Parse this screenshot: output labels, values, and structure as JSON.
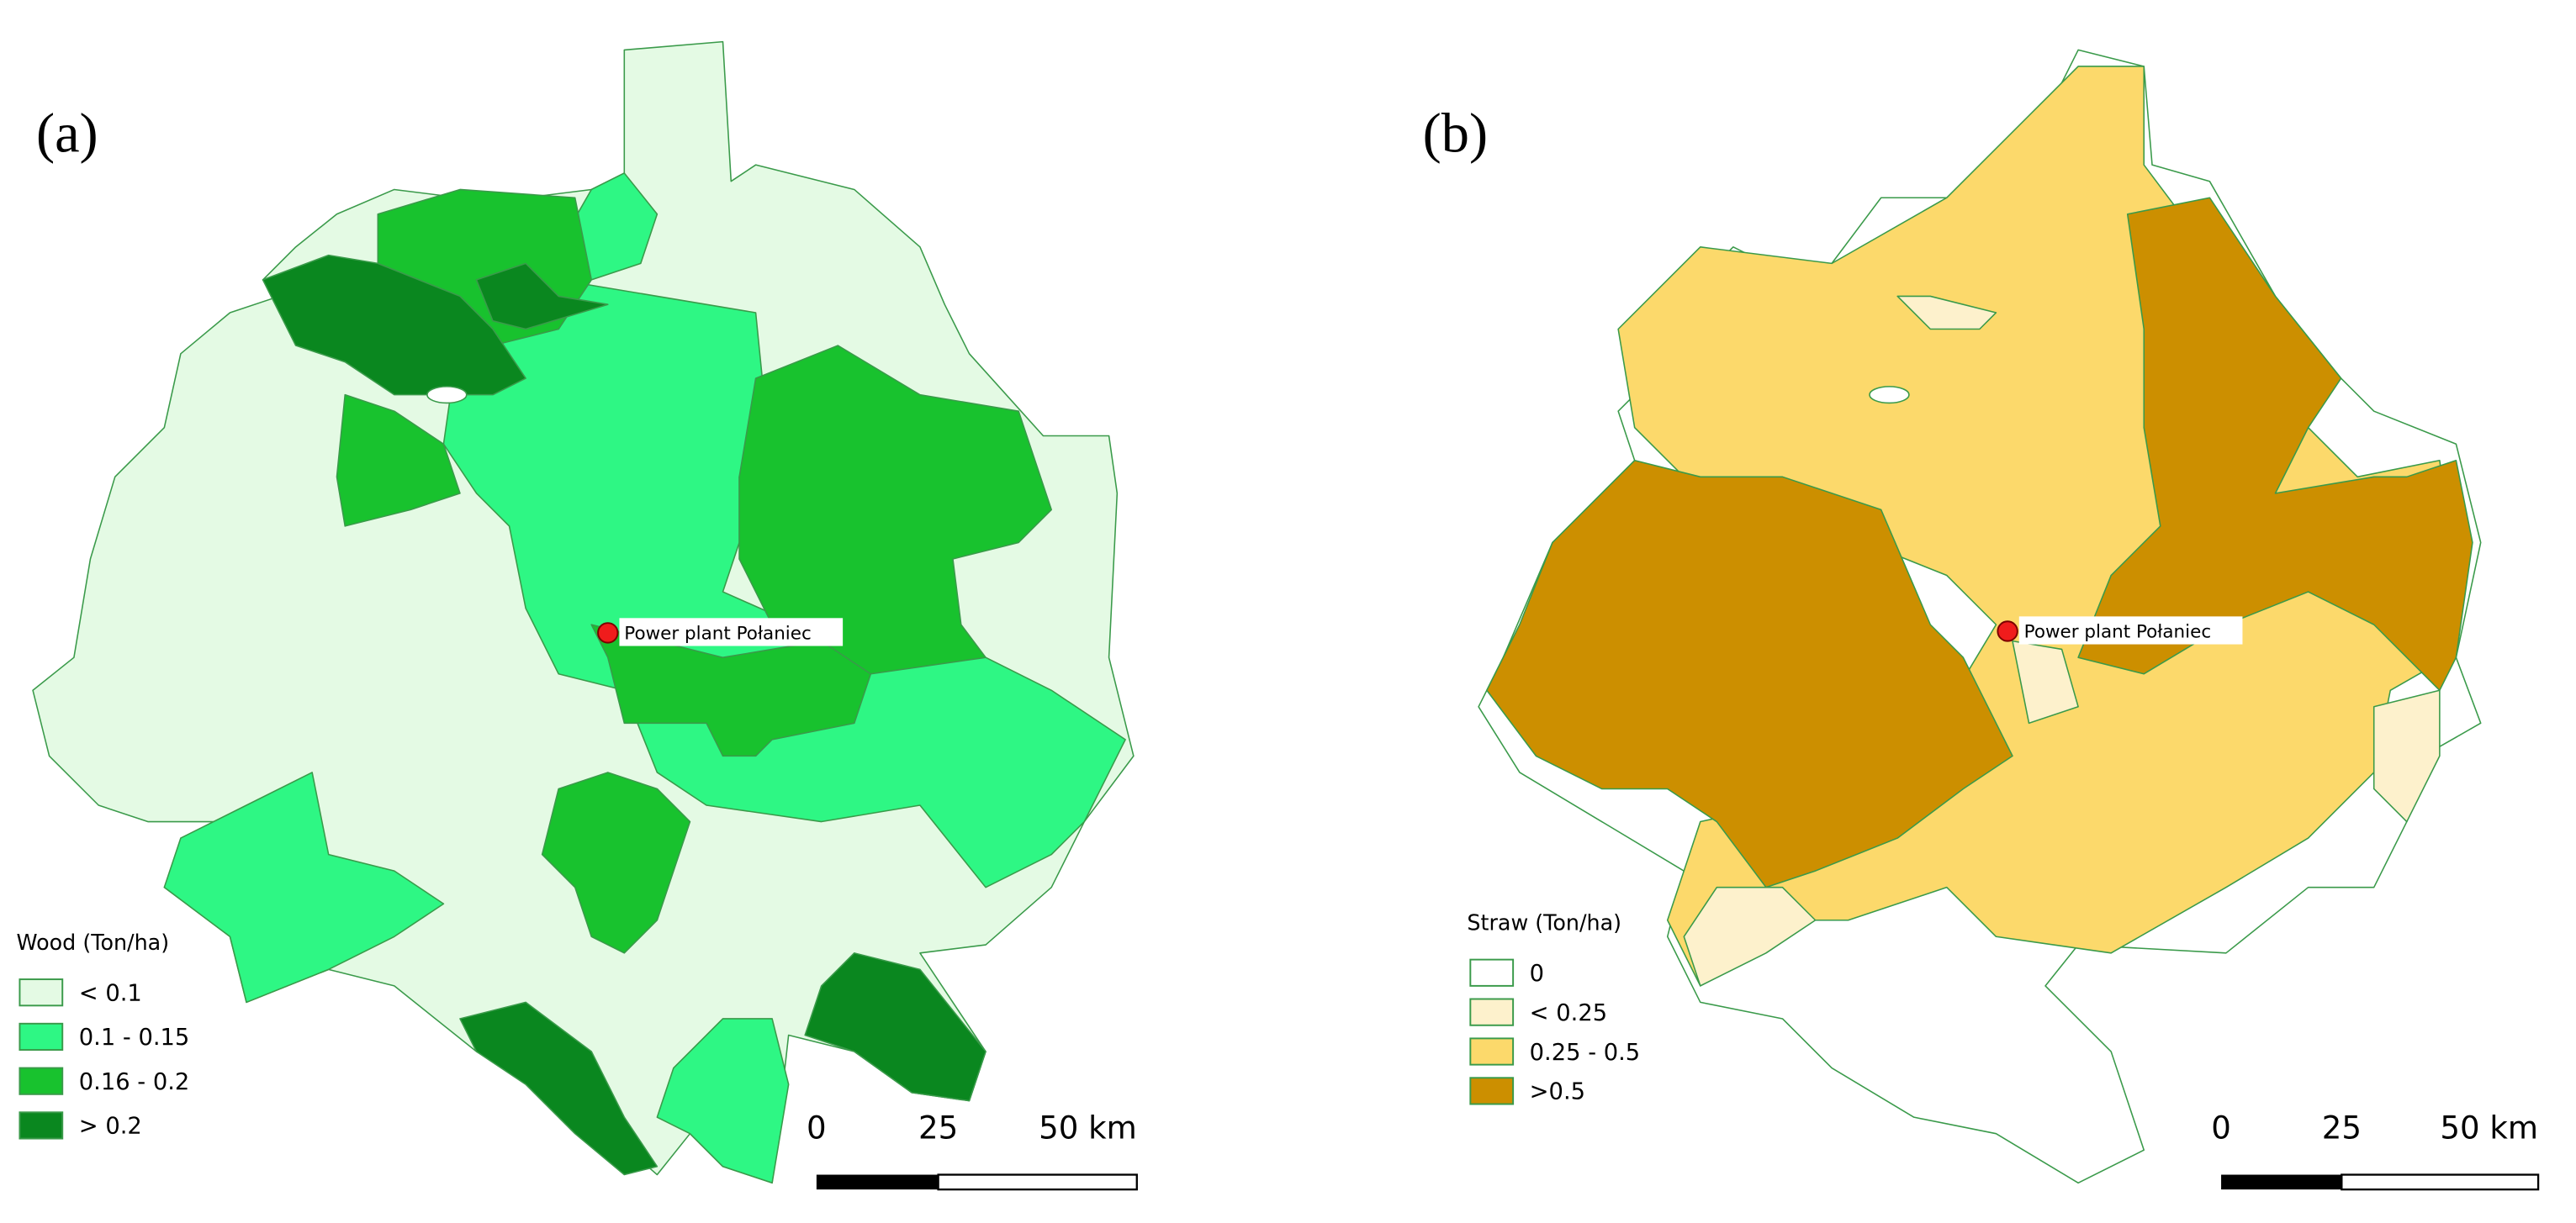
{
  "panels": [
    {
      "label": "(a)",
      "marker_label": "Power plant Połaniec",
      "legend": {
        "title": "Wood (Ton/ha)",
        "items": [
          {
            "label": "< 0.1",
            "color": "#e4fae4"
          },
          {
            "label": "0.1 - 0.15",
            "color": "#2ef784"
          },
          {
            "label": "0.16 - 0.2",
            "color": "#18c22e"
          },
          {
            "label": "> 0.2",
            "color": "#0a871f"
          }
        ]
      },
      "scale_bar": [
        "0",
        "25",
        "50 km"
      ]
    },
    {
      "label": "(b)",
      "marker_label": "Power plant Połaniec",
      "legend": {
        "title": "Straw (Ton/ha)",
        "items": [
          {
            "label": "0",
            "color": "#ffffff"
          },
          {
            "label": "< 0.25",
            "color": "#fdf1cc"
          },
          {
            "label": "0.25 - 0.5",
            "color": "#fcd96b"
          },
          {
            "label": ">0.5",
            "color": "#cc8f00"
          }
        ]
      },
      "scale_bar": [
        "0",
        "25",
        "50 km"
      ]
    }
  ]
}
